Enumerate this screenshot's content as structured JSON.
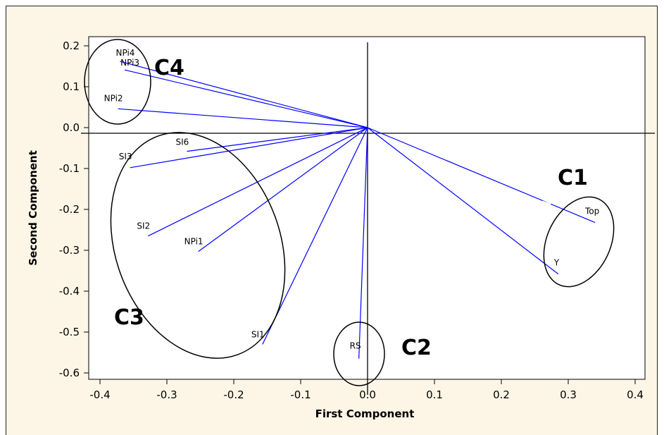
{
  "chart_data": {
    "type": "scatter",
    "subtype": "loading-plot",
    "xlabel": "First Component",
    "ylabel": "Second Component",
    "xlim": [
      -0.42,
      0.42
    ],
    "ylim": [
      -0.62,
      0.21
    ],
    "x_ticks": [
      -0.4,
      -0.3,
      -0.2,
      -0.1,
      0.0,
      0.1,
      0.2,
      0.3,
      0.4
    ],
    "x_tick_labels": [
      "-0.4",
      "-0.3",
      "-0.2",
      "-0.1",
      "0.0",
      "0.1",
      "0.2",
      "0.3",
      "0.4"
    ],
    "y_ticks": [
      0.2,
      0.1,
      0.0,
      -0.1,
      -0.2,
      -0.3,
      -0.4,
      -0.5,
      -0.6
    ],
    "y_tick_labels": [
      "0.2",
      "0.1",
      "0.0",
      "-0.1",
      "-0.2",
      "-0.3",
      "-0.4",
      "-0.5",
      "-0.6"
    ],
    "line_color": "#0000ff",
    "points": [
      {
        "label": "NPi4",
        "x": -0.37,
        "y": 0.162
      },
      {
        "label": "NPi3",
        "x": -0.363,
        "y": 0.141
      },
      {
        "label": "NPi2",
        "x": -0.373,
        "y": 0.046
      },
      {
        "label": "SI6",
        "x": -0.27,
        "y": -0.058
      },
      {
        "label": "SI3",
        "x": -0.355,
        "y": -0.098
      },
      {
        "label": "SI2",
        "x": -0.328,
        "y": -0.265
      },
      {
        "label": "NPi1",
        "x": -0.253,
        "y": -0.303
      },
      {
        "label": "SI1",
        "x": -0.157,
        "y": -0.53
      },
      {
        "label": "RS",
        "x": -0.013,
        "y": -0.565
      },
      {
        "label": "Top",
        "x": 0.34,
        "y": -0.232
      },
      {
        "label": "Y",
        "x": 0.285,
        "y": -0.358
      }
    ],
    "clusters": [
      {
        "label": "C1"
      },
      {
        "label": "C2"
      },
      {
        "label": "C3"
      },
      {
        "label": "C4"
      }
    ]
  }
}
